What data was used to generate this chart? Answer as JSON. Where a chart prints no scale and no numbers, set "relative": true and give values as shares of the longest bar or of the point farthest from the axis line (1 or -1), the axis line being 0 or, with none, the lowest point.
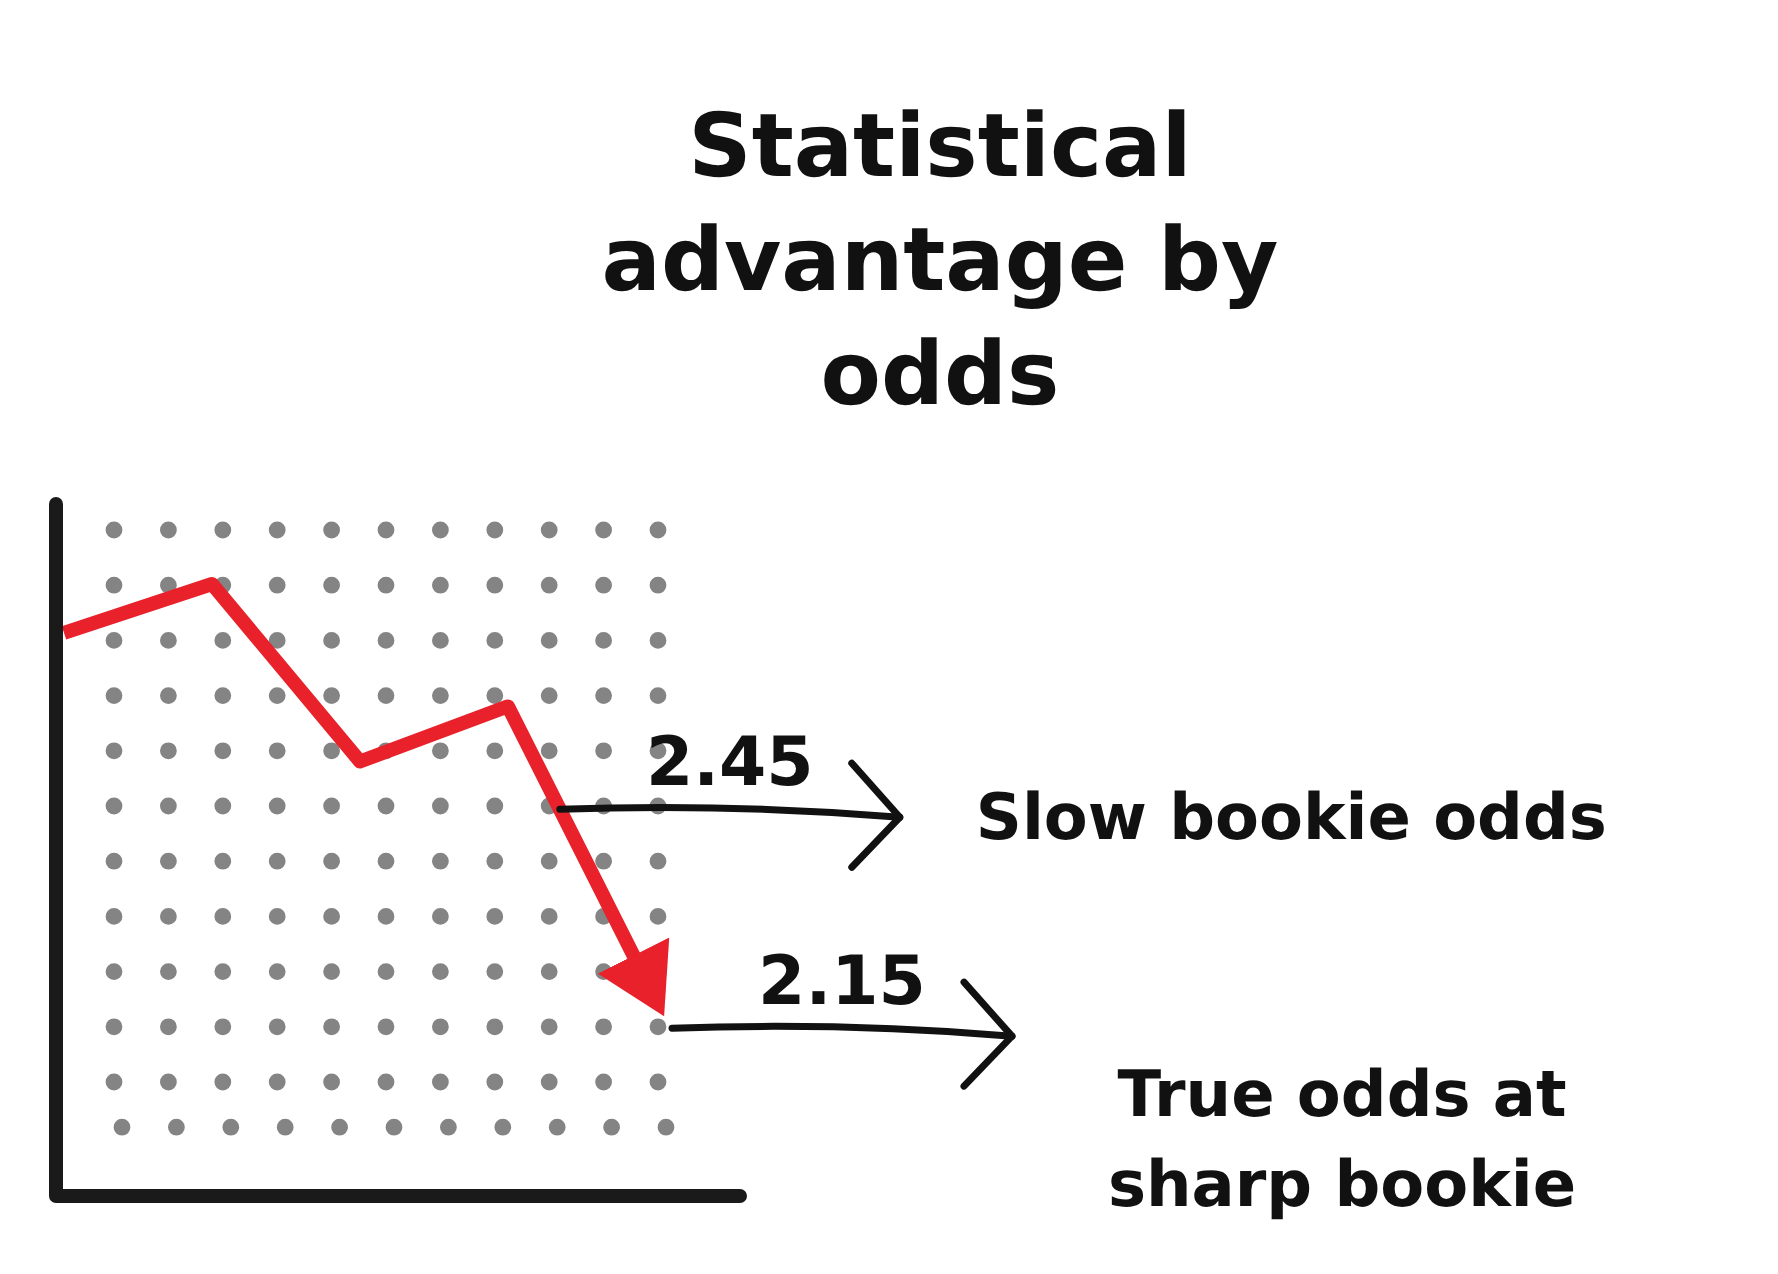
{
  "chart_data": {
    "type": "line",
    "title": "Statistical advantage by odds",
    "categories": [
      null,
      null,
      null,
      null,
      null
    ],
    "series": [
      {
        "color": "#e8212b",
        "values": [
          0.92,
          1,
          0.71,
          0.8,
          0.32
        ]
      }
    ],
    "relative": true,
    "grid": true,
    "annotations": [
      "2.45",
      "Slow bookie odds",
      "2.15",
      "True odds at sharp bookie"
    ]
  }
}
